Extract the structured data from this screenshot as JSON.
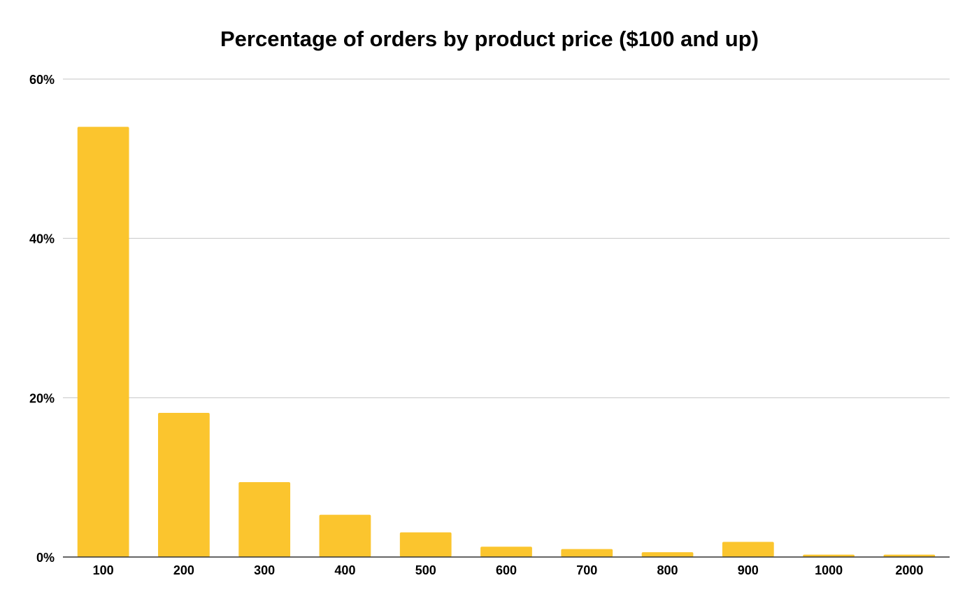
{
  "chart_data": {
    "type": "bar",
    "title": "Percentage of orders by product price ($100 and up)",
    "xlabel": "",
    "ylabel": "",
    "categories": [
      "100",
      "200",
      "300",
      "400",
      "500",
      "600",
      "700",
      "800",
      "900",
      "1000",
      "2000"
    ],
    "values": [
      54.0,
      18.1,
      9.4,
      5.3,
      3.1,
      1.3,
      1.0,
      0.6,
      1.9,
      0.3,
      0.3
    ],
    "ylim": [
      0,
      60
    ],
    "yticks": [
      0,
      20,
      40,
      60
    ],
    "ytick_labels": [
      "0%",
      "20%",
      "40%",
      "60%"
    ],
    "grid": true,
    "legend": "none",
    "colors": {
      "bar": "#FBC52E",
      "grid": "#C6C6C6",
      "axis": "#333333",
      "text": "#000000"
    }
  }
}
